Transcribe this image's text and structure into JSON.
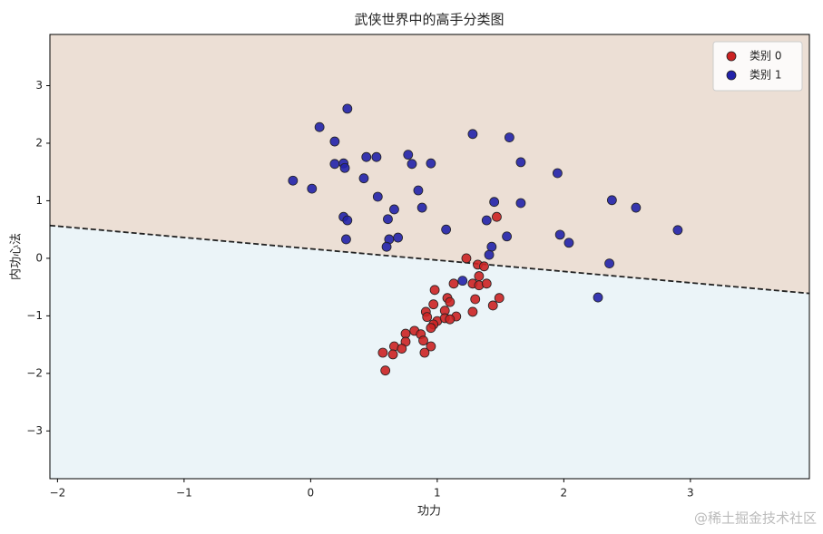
{
  "chart_data": {
    "type": "scatter",
    "title": "武侠世界中的高手分类图",
    "x_label": "功力",
    "y_label": "内功心法",
    "xlim": [
      -2.06,
      3.94
    ],
    "ylim": [
      -3.83,
      3.89
    ],
    "xticks": [
      {
        "value": -2,
        "label": "−2"
      },
      {
        "value": -1,
        "label": "−1"
      },
      0,
      1,
      2,
      3
    ],
    "yticks": [
      {
        "value": -3,
        "label": "−3"
      },
      {
        "value": -2,
        "label": "−2"
      },
      {
        "value": -1,
        "label": "−1"
      },
      0,
      1,
      2,
      3
    ],
    "legend": "upper right",
    "regions": {
      "above_color": "#ecdfd5",
      "below_color": "#ebf4f8"
    },
    "boundary": {
      "x": [
        -2.06,
        3.94
      ],
      "y": [
        0.57,
        -0.61
      ],
      "color": "#222222"
    },
    "series": [
      {
        "name": "类别 0",
        "color": "#cc2222",
        "x": [
          1.47,
          1.23,
          1.32,
          1.37,
          1.13,
          1.33,
          1.28,
          1.33,
          1.39,
          1.49,
          1.44,
          1.3,
          1.28,
          0.98,
          0.97,
          1.08,
          1.1,
          1.06,
          0.91,
          0.92,
          1.0,
          0.97,
          1.06,
          1.15,
          1.1,
          0.95,
          0.82,
          0.87,
          0.75,
          0.75,
          0.89,
          0.95,
          0.9,
          0.66,
          0.72,
          0.65,
          0.57,
          0.59
        ],
        "y": [
          0.72,
          0.0,
          -0.11,
          -0.14,
          -0.44,
          -0.31,
          -0.44,
          -0.47,
          -0.44,
          -0.69,
          -0.82,
          -0.71,
          -0.93,
          -0.55,
          -0.8,
          -0.69,
          -0.76,
          -0.91,
          -0.93,
          -1.02,
          -1.09,
          -1.15,
          -1.04,
          -1.01,
          -1.06,
          -1.21,
          -1.26,
          -1.32,
          -1.31,
          -1.45,
          -1.43,
          -1.53,
          -1.64,
          -1.53,
          -1.57,
          -1.67,
          -1.64,
          -1.95
        ]
      },
      {
        "name": "类别 1",
        "color": "#2222aa",
        "x": [
          0.29,
          0.07,
          0.19,
          1.28,
          1.57,
          -0.14,
          0.01,
          0.19,
          0.26,
          0.27,
          0.44,
          0.52,
          0.42,
          0.53,
          0.77,
          0.8,
          0.95,
          0.85,
          0.88,
          0.66,
          0.61,
          0.26,
          0.29,
          0.28,
          0.62,
          0.69,
          0.6,
          1.07,
          1.45,
          1.39,
          1.55,
          1.66,
          1.66,
          1.43,
          1.41,
          1.95,
          1.97,
          2.04,
          2.38,
          2.57,
          2.9,
          2.36,
          1.2,
          2.27
        ],
        "y": [
          2.6,
          2.28,
          2.03,
          2.16,
          2.1,
          1.35,
          1.21,
          1.64,
          1.65,
          1.57,
          1.76,
          1.76,
          1.39,
          1.07,
          1.8,
          1.64,
          1.65,
          1.18,
          0.88,
          0.85,
          0.68,
          0.72,
          0.66,
          0.33,
          0.33,
          0.36,
          0.2,
          0.5,
          0.98,
          0.66,
          0.38,
          1.67,
          0.96,
          0.2,
          0.06,
          1.48,
          0.41,
          0.27,
          1.01,
          0.88,
          0.49,
          -0.09,
          -0.39,
          -0.68
        ]
      }
    ]
  },
  "watermark": "@稀土掘金技术社区"
}
